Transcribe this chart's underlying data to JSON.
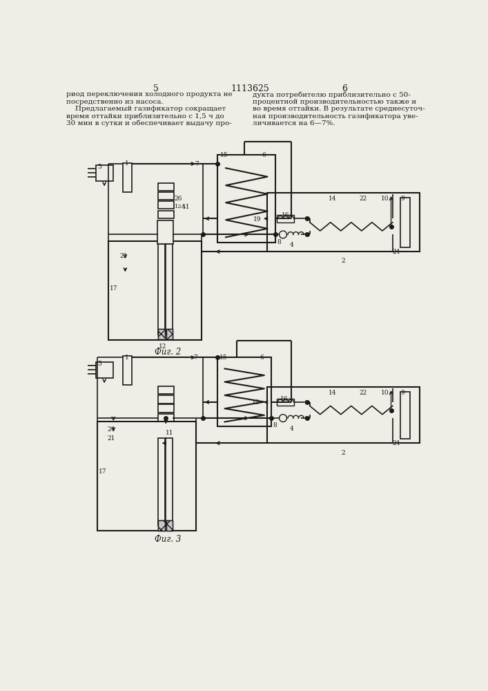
{
  "title_number": "1113625",
  "page_left": "5",
  "page_right": "6",
  "text_left_lines": [
    "риод переключения холодного продукта не",
    "посредственно из насоса.",
    "    Предлагаемый газификатор сокращает",
    "время оттайки приблизительно с 1,5 ч до",
    "30 мин в сутки и обеспечивает выдачу про-"
  ],
  "text_right_lines": [
    "дукта потребителю приблизительно с 50-",
    "процентной производительностью также и",
    "во время оттайки. В результате среднесуточ-",
    "ная производительность газификатора уве-",
    "личивается на 6—7%."
  ],
  "fig2_label": "Фиг. 2",
  "fig3_label": "Фиг. 3",
  "bg_color": "#f0ede6",
  "line_color": "#1a1a1a"
}
